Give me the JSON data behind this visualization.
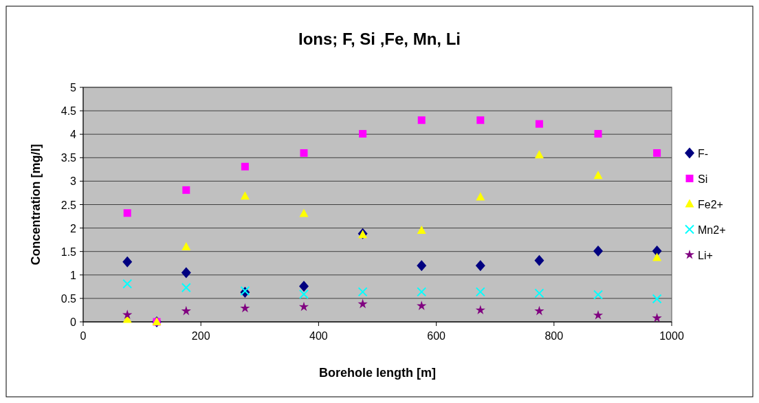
{
  "chart_data": {
    "type": "scatter",
    "title": "Ions; F, Si ,Fe, Mn, Li",
    "xlabel": "Borehole length [m]",
    "ylabel": "Concentration [mg/l]",
    "xlim": [
      0,
      1000
    ],
    "xticks": [
      0,
      200,
      400,
      600,
      800,
      1000
    ],
    "ylim": [
      0,
      5
    ],
    "yticks": [
      0,
      0.5,
      1,
      1.5,
      2,
      2.5,
      3,
      3.5,
      4,
      4.5,
      5
    ],
    "grid": "y",
    "legend": "right",
    "series": [
      {
        "name": "F-",
        "color": "#000080",
        "marker": "diamond",
        "x": [
          75,
          125,
          175,
          275,
          375,
          475,
          575,
          675,
          775,
          875,
          975
        ],
        "values": [
          1.28,
          0,
          1.05,
          0.63,
          0.76,
          1.88,
          1.2,
          1.2,
          1.31,
          1.51,
          1.51
        ]
      },
      {
        "name": "Si",
        "color": "#ff00ff",
        "marker": "square",
        "x": [
          75,
          125,
          175,
          275,
          375,
          475,
          575,
          675,
          775,
          875,
          975
        ],
        "values": [
          2.32,
          0,
          2.81,
          3.31,
          3.6,
          4.01,
          4.3,
          4.3,
          4.22,
          4.01,
          3.6
        ]
      },
      {
        "name": "Fe2+",
        "color": "#ffff00",
        "marker": "triangle",
        "x": [
          75,
          125,
          175,
          275,
          375,
          475,
          575,
          675,
          775,
          875,
          975
        ],
        "values": [
          0.05,
          0,
          1.6,
          2.68,
          2.31,
          1.86,
          1.95,
          2.66,
          3.56,
          3.12,
          1.37
        ]
      },
      {
        "name": "Mn2+",
        "color": "#00ffff",
        "marker": "cross",
        "x": [
          75,
          175,
          275,
          375,
          475,
          575,
          675,
          775,
          875,
          975
        ],
        "values": [
          0.81,
          0.73,
          0.66,
          0.59,
          0.64,
          0.64,
          0.64,
          0.61,
          0.58,
          0.49
        ]
      },
      {
        "name": "Li+",
        "color": "#800080",
        "marker": "star",
        "x": [
          75,
          175,
          275,
          375,
          475,
          575,
          675,
          775,
          875,
          975
        ],
        "values": [
          0.15,
          0.23,
          0.29,
          0.32,
          0.38,
          0.34,
          0.25,
          0.23,
          0.14,
          0.08
        ]
      }
    ]
  }
}
